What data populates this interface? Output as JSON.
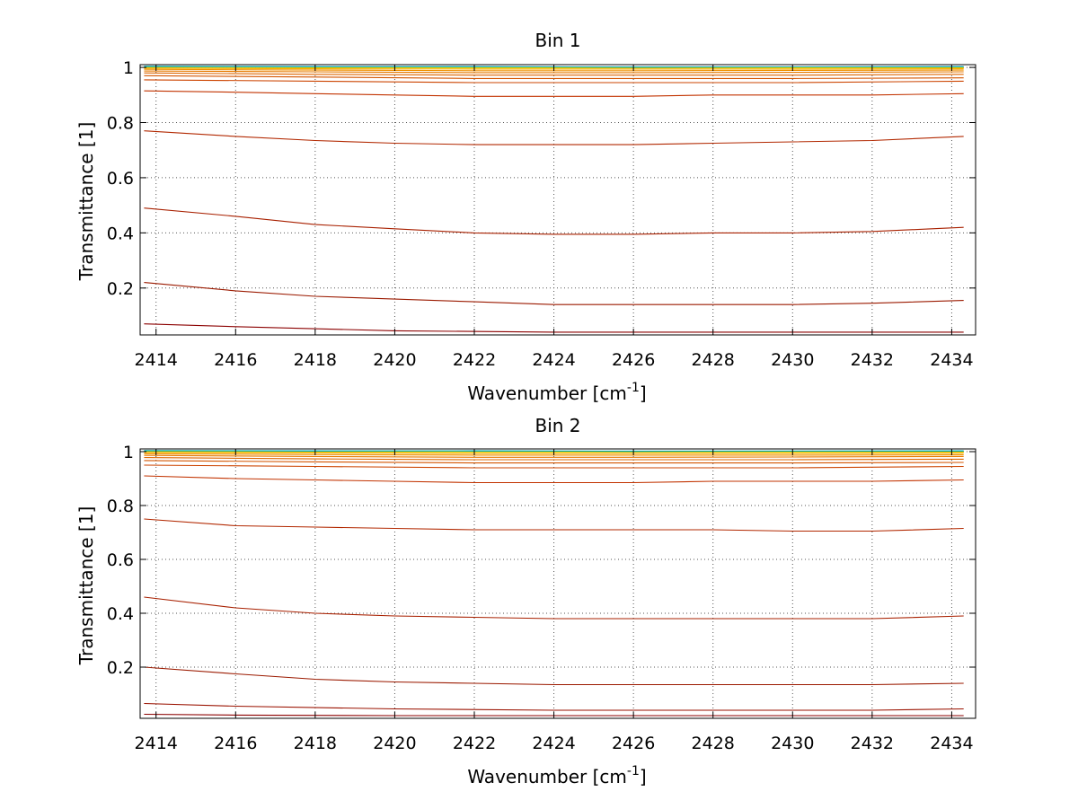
{
  "chart_data": [
    {
      "type": "line",
      "title": "Bin 1",
      "xlabel": "Wavenumber [cm",
      "xlabel_sup": "-1",
      "xlabel_suffix": "]",
      "ylabel": "Transmittance [1]",
      "xlim": [
        2413.6,
        2434.6
      ],
      "ylim": [
        0.03,
        1.01
      ],
      "xticks": [
        2414,
        2416,
        2418,
        2420,
        2422,
        2424,
        2426,
        2428,
        2430,
        2432,
        2434
      ],
      "yticks": [
        0.2,
        0.4,
        0.6,
        0.8,
        1
      ],
      "grid": true,
      "series": [
        {
          "color": "#8b0000",
          "x": [
            2413.7,
            2416,
            2420,
            2424,
            2428,
            2432,
            2434.3
          ],
          "values": [
            0.07,
            0.06,
            0.045,
            0.04,
            0.04,
            0.04,
            0.04
          ]
        },
        {
          "color": "#9b1a00",
          "x": [
            2413.7,
            2416,
            2418,
            2420,
            2422,
            2424,
            2426,
            2428,
            2430,
            2432,
            2434.3
          ],
          "values": [
            0.22,
            0.19,
            0.17,
            0.16,
            0.15,
            0.14,
            0.14,
            0.14,
            0.14,
            0.145,
            0.155
          ]
        },
        {
          "color": "#a82000",
          "x": [
            2413.7,
            2416,
            2418,
            2420,
            2422,
            2424,
            2426,
            2428,
            2430,
            2432,
            2434.3
          ],
          "values": [
            0.49,
            0.46,
            0.43,
            0.415,
            0.4,
            0.395,
            0.395,
            0.4,
            0.4,
            0.405,
            0.42
          ]
        },
        {
          "color": "#b22800",
          "x": [
            2413.7,
            2416,
            2418,
            2420,
            2422,
            2424,
            2426,
            2428,
            2430,
            2432,
            2434.3
          ],
          "values": [
            0.77,
            0.75,
            0.735,
            0.725,
            0.72,
            0.72,
            0.72,
            0.725,
            0.73,
            0.735,
            0.75
          ]
        },
        {
          "color": "#c23300",
          "x": [
            2413.7,
            2416,
            2418,
            2420,
            2422,
            2424,
            2426,
            2428,
            2430,
            2432,
            2434.3
          ],
          "values": [
            0.915,
            0.91,
            0.905,
            0.9,
            0.895,
            0.895,
            0.895,
            0.9,
            0.9,
            0.9,
            0.905
          ]
        },
        {
          "color": "#cc4400",
          "x": [
            2413.7,
            2418,
            2422,
            2426,
            2430,
            2434.3
          ],
          "values": [
            0.955,
            0.95,
            0.945,
            0.945,
            0.945,
            0.95
          ]
        },
        {
          "color": "#d45500",
          "x": [
            2413.7,
            2418,
            2422,
            2426,
            2430,
            2434.3
          ],
          "values": [
            0.97,
            0.965,
            0.96,
            0.96,
            0.96,
            0.962
          ]
        },
        {
          "color": "#dd6600",
          "x": [
            2413.7,
            2418,
            2422,
            2426,
            2430,
            2434.3
          ],
          "values": [
            0.98,
            0.975,
            0.972,
            0.972,
            0.972,
            0.975
          ]
        },
        {
          "color": "#e67a00",
          "x": [
            2413.7,
            2418,
            2422,
            2426,
            2430,
            2434.3
          ],
          "values": [
            0.987,
            0.984,
            0.981,
            0.981,
            0.982,
            0.984
          ]
        },
        {
          "color": "#ef9000",
          "x": [
            2413.7,
            2418,
            2422,
            2426,
            2430,
            2434.3
          ],
          "values": [
            0.993,
            0.99,
            0.988,
            0.988,
            0.989,
            0.99
          ]
        },
        {
          "color": "#f5aa00",
          "x": [
            2413.7,
            2418,
            2422,
            2426,
            2430,
            2434.3
          ],
          "values": [
            0.997,
            0.995,
            0.994,
            0.994,
            0.994,
            0.995
          ]
        },
        {
          "color": "#f8c800",
          "x": [
            2413.7,
            2418,
            2422,
            2426,
            2430,
            2434.3
          ],
          "values": [
            1.0,
            0.999,
            0.998,
            0.998,
            0.998,
            0.999
          ]
        },
        {
          "color": "#e8e000",
          "x": [
            2413.7,
            2418,
            2422,
            2426,
            2430,
            2434.3
          ],
          "values": [
            1.002,
            1.001,
            1.0,
            1.0,
            1.0,
            1.001
          ]
        },
        {
          "color": "#20c0e0",
          "x": [
            2413.7,
            2418,
            2422,
            2426,
            2430,
            2434.3
          ],
          "values": [
            1.004,
            1.003,
            1.002,
            1.002,
            1.002,
            1.003
          ]
        },
        {
          "color": "#00a0a0",
          "x": [
            2413.7,
            2418,
            2422,
            2426,
            2430,
            2434.3
          ],
          "values": [
            1.003,
            1.002,
            1.003,
            1.001,
            1.002,
            1.002
          ]
        }
      ]
    },
    {
      "type": "line",
      "title": "Bin 2",
      "xlabel": "Wavenumber [cm",
      "xlabel_sup": "-1",
      "xlabel_suffix": "]",
      "ylabel": "Transmittance [1]",
      "xlim": [
        2413.6,
        2434.6
      ],
      "ylim": [
        0.01,
        1.01
      ],
      "xticks": [
        2414,
        2416,
        2418,
        2420,
        2422,
        2424,
        2426,
        2428,
        2430,
        2432,
        2434
      ],
      "yticks": [
        0.2,
        0.4,
        0.6,
        0.8,
        1
      ],
      "grid": true,
      "series": [
        {
          "color": "#8b0000",
          "x": [
            2413.7,
            2416,
            2420,
            2424,
            2428,
            2432,
            2434.3
          ],
          "values": [
            0.025,
            0.022,
            0.02,
            0.02,
            0.02,
            0.02,
            0.02
          ]
        },
        {
          "color": "#9a1200",
          "x": [
            2413.7,
            2416,
            2420,
            2424,
            2428,
            2432,
            2434.3
          ],
          "values": [
            0.065,
            0.055,
            0.045,
            0.04,
            0.04,
            0.04,
            0.045
          ]
        },
        {
          "color": "#9b1a00",
          "x": [
            2413.7,
            2416,
            2418,
            2420,
            2422,
            2424,
            2426,
            2428,
            2430,
            2432,
            2434.3
          ],
          "values": [
            0.2,
            0.175,
            0.155,
            0.145,
            0.14,
            0.135,
            0.135,
            0.135,
            0.135,
            0.135,
            0.14
          ]
        },
        {
          "color": "#a82000",
          "x": [
            2413.7,
            2416,
            2418,
            2420,
            2422,
            2424,
            2426,
            2428,
            2430,
            2432,
            2434.3
          ],
          "values": [
            0.46,
            0.42,
            0.4,
            0.39,
            0.385,
            0.38,
            0.38,
            0.38,
            0.38,
            0.38,
            0.39
          ]
        },
        {
          "color": "#b22800",
          "x": [
            2413.7,
            2416,
            2418,
            2420,
            2422,
            2424,
            2426,
            2428,
            2430,
            2432,
            2434.3
          ],
          "values": [
            0.75,
            0.725,
            0.72,
            0.715,
            0.71,
            0.71,
            0.71,
            0.71,
            0.705,
            0.705,
            0.715
          ]
        },
        {
          "color": "#c23300",
          "x": [
            2413.7,
            2416,
            2418,
            2420,
            2422,
            2424,
            2426,
            2428,
            2430,
            2432,
            2434.3
          ],
          "values": [
            0.91,
            0.9,
            0.895,
            0.89,
            0.885,
            0.885,
            0.885,
            0.89,
            0.89,
            0.89,
            0.895
          ]
        },
        {
          "color": "#cc4400",
          "x": [
            2413.7,
            2418,
            2422,
            2426,
            2430,
            2434.3
          ],
          "values": [
            0.95,
            0.945,
            0.94,
            0.94,
            0.94,
            0.945
          ]
        },
        {
          "color": "#d45500",
          "x": [
            2413.7,
            2418,
            2422,
            2426,
            2430,
            2434.3
          ],
          "values": [
            0.967,
            0.962,
            0.958,
            0.958,
            0.958,
            0.96
          ]
        },
        {
          "color": "#dd6600",
          "x": [
            2413.7,
            2418,
            2422,
            2426,
            2430,
            2434.3
          ],
          "values": [
            0.978,
            0.973,
            0.97,
            0.97,
            0.97,
            0.972
          ]
        },
        {
          "color": "#e67a00",
          "x": [
            2413.7,
            2418,
            2422,
            2426,
            2430,
            2434.3
          ],
          "values": [
            0.986,
            0.982,
            0.979,
            0.979,
            0.98,
            0.982
          ]
        },
        {
          "color": "#ef9000",
          "x": [
            2413.7,
            2418,
            2422,
            2426,
            2430,
            2434.3
          ],
          "values": [
            0.992,
            0.989,
            0.987,
            0.987,
            0.987,
            0.988
          ]
        },
        {
          "color": "#f5aa00",
          "x": [
            2413.7,
            2418,
            2422,
            2426,
            2430,
            2434.3
          ],
          "values": [
            0.997,
            0.995,
            0.993,
            0.993,
            0.993,
            0.994
          ]
        },
        {
          "color": "#f8c800",
          "x": [
            2413.7,
            2418,
            2422,
            2426,
            2430,
            2434.3
          ],
          "values": [
            1.0,
            0.999,
            0.998,
            0.998,
            0.998,
            0.998
          ]
        },
        {
          "color": "#e8e000",
          "x": [
            2413.7,
            2418,
            2422,
            2426,
            2430,
            2434.3
          ],
          "values": [
            1.002,
            1.001,
            1.0,
            1.0,
            1.0,
            1.001
          ]
        },
        {
          "color": "#20c0e0",
          "x": [
            2413.7,
            2418,
            2422,
            2426,
            2430,
            2434.3
          ],
          "values": [
            1.004,
            1.003,
            1.002,
            1.002,
            1.002,
            1.003
          ]
        },
        {
          "color": "#00a0a0",
          "x": [
            2413.7,
            2418,
            2422,
            2426,
            2430,
            2434.3
          ],
          "values": [
            1.003,
            1.002,
            1.003,
            1.001,
            1.002,
            1.002
          ]
        }
      ]
    }
  ]
}
